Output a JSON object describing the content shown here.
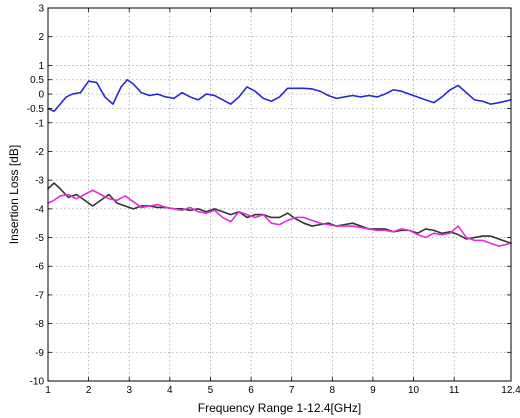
{
  "chart_data": {
    "type": "line",
    "title": "",
    "xlabel": "Frequency Range 1-12.4[GHz]",
    "ylabel": "Insertion Loss [dB]",
    "xlim": [
      1,
      12.4
    ],
    "ylim": [
      -10,
      3
    ],
    "grid": true,
    "legend": "none",
    "x_ticks": [
      1,
      2,
      3,
      4,
      5,
      6,
      7,
      8,
      9,
      10,
      11,
      12.4
    ],
    "x_tick_labels": [
      "1",
      "2",
      "3",
      "4",
      "5",
      "6",
      "7",
      "8",
      "9",
      "10",
      "11",
      "12.4"
    ],
    "y_ticks": [
      3,
      2,
      1,
      0.5,
      0,
      -0.5,
      -1,
      -2,
      -3,
      -4,
      -5,
      -6,
      -7,
      -8,
      -9,
      -10
    ],
    "y_tick_labels": [
      "3",
      "2",
      "1",
      "0.5",
      "0",
      "-0.5",
      "-1",
      "-2",
      "-3",
      "-4",
      "-5",
      "-6",
      "-7",
      "-8",
      "-9",
      "-10"
    ],
    "series": [
      {
        "color": "#2828d6",
        "x": [
          1.0,
          1.15,
          1.3,
          1.45,
          1.6,
          1.8,
          2.0,
          2.2,
          2.4,
          2.6,
          2.8,
          2.95,
          3.1,
          3.3,
          3.5,
          3.7,
          3.9,
          4.1,
          4.3,
          4.5,
          4.7,
          4.9,
          5.1,
          5.3,
          5.5,
          5.7,
          5.9,
          6.1,
          6.3,
          6.5,
          6.7,
          6.9,
          7.1,
          7.3,
          7.5,
          7.7,
          7.9,
          8.1,
          8.3,
          8.5,
          8.7,
          8.9,
          9.1,
          9.3,
          9.5,
          9.7,
          9.9,
          10.1,
          10.3,
          10.5,
          10.7,
          10.9,
          11.1,
          11.3,
          11.5,
          11.7,
          11.9,
          12.1,
          12.4
        ],
        "y": [
          -0.5,
          -0.6,
          -0.35,
          -0.1,
          0.0,
          0.05,
          0.45,
          0.4,
          -0.1,
          -0.35,
          0.25,
          0.5,
          0.35,
          0.05,
          -0.05,
          0.0,
          -0.1,
          -0.15,
          0.05,
          -0.1,
          -0.2,
          0.0,
          -0.05,
          -0.2,
          -0.35,
          -0.1,
          0.25,
          0.1,
          -0.15,
          -0.25,
          -0.1,
          0.2,
          0.2,
          0.2,
          0.18,
          0.1,
          -0.05,
          -0.15,
          -0.1,
          -0.05,
          -0.1,
          -0.05,
          -0.1,
          0.0,
          0.15,
          0.1,
          0.0,
          -0.1,
          -0.2,
          -0.3,
          -0.1,
          0.15,
          0.3,
          0.05,
          -0.2,
          -0.25,
          -0.35,
          -0.3,
          -0.2
        ]
      },
      {
        "color": "#333333",
        "x": [
          1.0,
          1.15,
          1.3,
          1.5,
          1.7,
          1.9,
          2.1,
          2.3,
          2.5,
          2.7,
          2.9,
          3.1,
          3.3,
          3.5,
          3.7,
          3.9,
          4.1,
          4.3,
          4.5,
          4.7,
          4.9,
          5.1,
          5.3,
          5.5,
          5.7,
          5.9,
          6.1,
          6.3,
          6.5,
          6.7,
          6.9,
          7.1,
          7.3,
          7.5,
          7.7,
          7.9,
          8.1,
          8.3,
          8.5,
          8.7,
          8.9,
          9.1,
          9.3,
          9.5,
          9.7,
          9.9,
          10.1,
          10.3,
          10.5,
          10.7,
          10.9,
          11.1,
          11.3,
          11.5,
          11.7,
          11.9,
          12.1,
          12.4
        ],
        "y": [
          -3.3,
          -3.1,
          -3.3,
          -3.6,
          -3.5,
          -3.7,
          -3.9,
          -3.7,
          -3.5,
          -3.8,
          -3.9,
          -4.0,
          -3.9,
          -3.9,
          -3.95,
          -3.95,
          -4.0,
          -4.0,
          -4.05,
          -4.0,
          -4.1,
          -4.0,
          -4.1,
          -4.2,
          -4.1,
          -4.3,
          -4.2,
          -4.2,
          -4.3,
          -4.3,
          -4.15,
          -4.35,
          -4.5,
          -4.6,
          -4.55,
          -4.5,
          -4.6,
          -4.55,
          -4.5,
          -4.6,
          -4.7,
          -4.7,
          -4.7,
          -4.8,
          -4.75,
          -4.75,
          -4.85,
          -4.7,
          -4.75,
          -4.85,
          -4.8,
          -4.9,
          -5.05,
          -5.0,
          -4.95,
          -4.95,
          -5.05,
          -5.2
        ]
      },
      {
        "color": "#e030d8",
        "x": [
          1.0,
          1.15,
          1.3,
          1.5,
          1.7,
          1.9,
          2.1,
          2.3,
          2.5,
          2.7,
          2.9,
          3.1,
          3.3,
          3.5,
          3.7,
          3.9,
          4.1,
          4.3,
          4.5,
          4.7,
          4.9,
          5.1,
          5.3,
          5.5,
          5.7,
          5.9,
          6.1,
          6.3,
          6.5,
          6.7,
          6.9,
          7.1,
          7.3,
          7.5,
          7.7,
          7.9,
          8.1,
          8.3,
          8.5,
          8.7,
          8.9,
          9.1,
          9.3,
          9.5,
          9.7,
          9.9,
          10.1,
          10.3,
          10.5,
          10.7,
          10.9,
          11.1,
          11.3,
          11.5,
          11.7,
          11.9,
          12.1,
          12.4
        ],
        "y": [
          -3.8,
          -3.7,
          -3.55,
          -3.5,
          -3.65,
          -3.5,
          -3.35,
          -3.5,
          -3.65,
          -3.7,
          -3.55,
          -3.75,
          -3.95,
          -3.9,
          -3.85,
          -3.95,
          -4.0,
          -4.05,
          -3.95,
          -4.1,
          -4.15,
          -4.05,
          -4.3,
          -4.45,
          -4.1,
          -4.2,
          -4.3,
          -4.2,
          -4.5,
          -4.55,
          -4.4,
          -4.3,
          -4.3,
          -4.4,
          -4.5,
          -4.55,
          -4.6,
          -4.6,
          -4.6,
          -4.65,
          -4.7,
          -4.75,
          -4.75,
          -4.8,
          -4.7,
          -4.75,
          -4.9,
          -5.0,
          -4.85,
          -4.9,
          -4.85,
          -4.6,
          -5.0,
          -5.1,
          -5.1,
          -5.2,
          -5.3,
          -5.2
        ]
      }
    ]
  }
}
